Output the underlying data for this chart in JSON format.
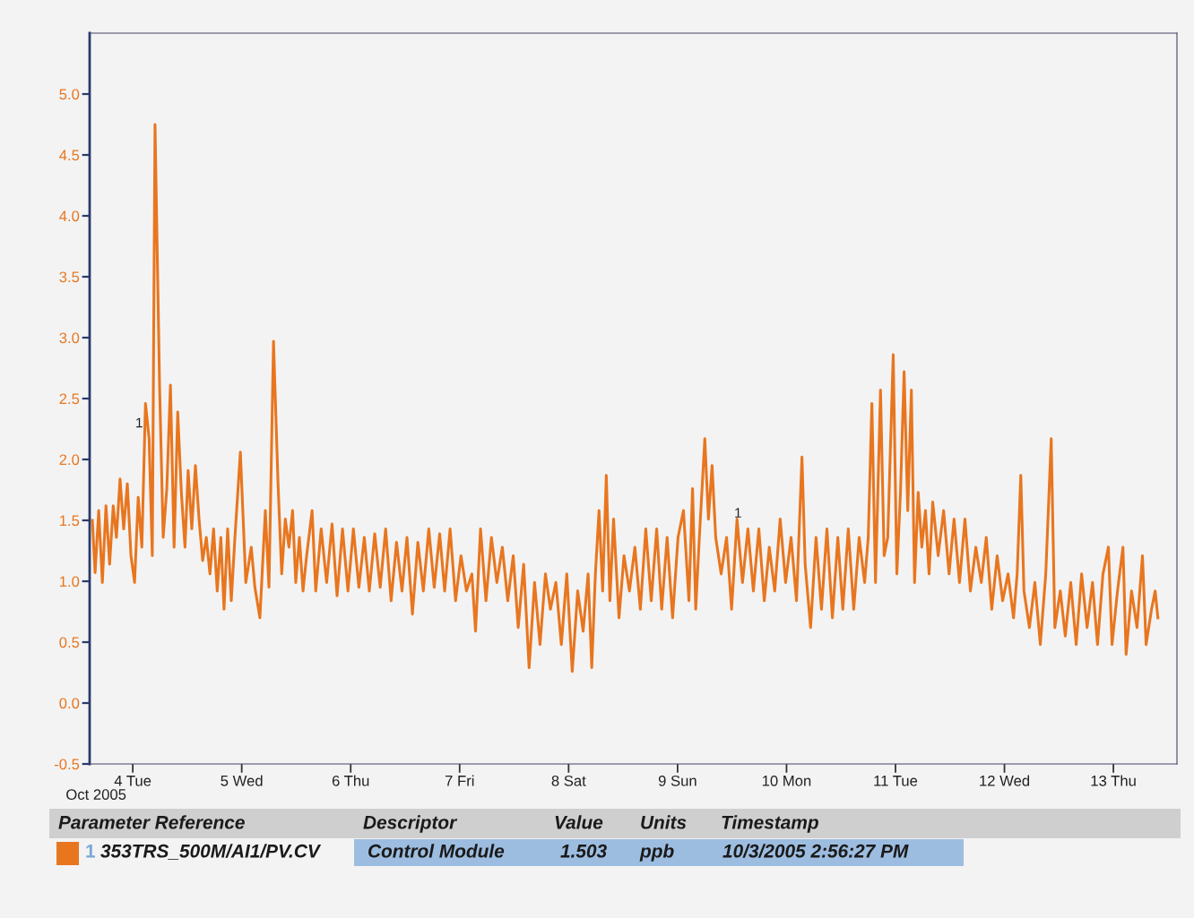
{
  "chart_data": {
    "type": "line",
    "xlabel": "Oct 2005",
    "x": [
      "2005-10-03T15:06",
      "2005-10-03T15:42",
      "2005-10-03T16:30",
      "2005-10-03T17:18",
      "2005-10-03T18:06",
      "2005-10-03T18:54",
      "2005-10-03T19:42",
      "2005-10-03T20:24",
      "2005-10-03T21:12",
      "2005-10-03T22:00",
      "2005-10-03T22:48",
      "2005-10-03T23:36",
      "2005-10-04T00:24",
      "2005-10-04T01:12",
      "2005-10-04T02:00",
      "2005-10-04T02:48",
      "2005-10-04T03:36",
      "2005-10-04T04:18",
      "2005-10-04T04:54",
      "2005-10-04T05:54",
      "2005-10-04T06:42",
      "2005-10-04T07:30",
      "2005-10-04T08:18",
      "2005-10-04T09:06",
      "2005-10-04T09:54",
      "2005-10-04T10:42",
      "2005-10-04T11:30",
      "2005-10-04T12:12",
      "2005-10-04T13:00",
      "2005-10-04T13:48",
      "2005-10-04T14:36",
      "2005-10-04T15:24",
      "2005-10-04T16:12",
      "2005-10-04T17:00",
      "2005-10-04T17:48",
      "2005-10-04T18:36",
      "2005-10-04T19:24",
      "2005-10-04T20:06",
      "2005-10-04T20:54",
      "2005-10-04T21:42",
      "2005-10-04T22:30",
      "2005-10-04T23:42",
      "2005-10-05T00:54",
      "2005-10-05T02:06",
      "2005-10-05T02:54",
      "2005-10-05T04:00",
      "2005-10-05T05:12",
      "2005-10-05T06:00",
      "2005-10-05T07:00",
      "2005-10-05T08:00",
      "2005-10-05T08:48",
      "2005-10-05T09:36",
      "2005-10-05T10:24",
      "2005-10-05T11:12",
      "2005-10-05T11:54",
      "2005-10-05T12:42",
      "2005-10-05T13:30",
      "2005-10-05T14:18",
      "2005-10-05T15:30",
      "2005-10-05T16:18",
      "2005-10-05T17:30",
      "2005-10-05T18:42",
      "2005-10-05T19:54",
      "2005-10-05T21:00",
      "2005-10-05T22:12",
      "2005-10-05T23:24",
      "2005-10-06T00:36",
      "2005-10-06T01:48",
      "2005-10-06T03:00",
      "2005-10-06T04:06",
      "2005-10-06T05:18",
      "2005-10-06T06:30",
      "2005-10-06T07:42",
      "2005-10-06T08:54",
      "2005-10-06T10:06",
      "2005-10-06T11:18",
      "2005-10-06T12:24",
      "2005-10-06T13:36",
      "2005-10-06T14:48",
      "2005-10-06T16:00",
      "2005-10-06T17:12",
      "2005-10-06T18:24",
      "2005-10-06T19:36",
      "2005-10-06T20:42",
      "2005-10-06T21:54",
      "2005-10-06T23:06",
      "2005-10-07T00:18",
      "2005-10-07T01:30",
      "2005-10-07T02:42",
      "2005-10-07T03:30",
      "2005-10-07T04:36",
      "2005-10-07T05:48",
      "2005-10-07T07:00",
      "2005-10-07T08:12",
      "2005-10-07T09:24",
      "2005-10-07T10:36",
      "2005-10-07T11:48",
      "2005-10-07T12:54",
      "2005-10-07T14:06",
      "2005-10-07T15:18",
      "2005-10-07T16:30",
      "2005-10-07T17:42",
      "2005-10-07T18:54",
      "2005-10-07T20:00",
      "2005-10-07T21:12",
      "2005-10-07T22:24",
      "2005-10-07T23:36",
      "2005-10-08T00:48",
      "2005-10-08T02:00",
      "2005-10-08T03:12",
      "2005-10-08T04:18",
      "2005-10-08T05:06",
      "2005-10-08T05:54",
      "2005-10-08T06:42",
      "2005-10-08T07:30",
      "2005-10-08T08:18",
      "2005-10-08T09:06",
      "2005-10-08T09:54",
      "2005-10-08T11:06",
      "2005-10-08T12:12",
      "2005-10-08T13:24",
      "2005-10-08T14:36",
      "2005-10-08T15:48",
      "2005-10-08T17:00",
      "2005-10-08T18:12",
      "2005-10-08T19:24",
      "2005-10-08T20:30",
      "2005-10-08T21:42",
      "2005-10-08T22:54",
      "2005-10-09T00:06",
      "2005-10-09T01:18",
      "2005-10-09T02:30",
      "2005-10-09T03:18",
      "2005-10-09T04:00",
      "2005-10-09T04:48",
      "2005-10-09T06:00",
      "2005-10-09T06:48",
      "2005-10-09T07:36",
      "2005-10-09T08:24",
      "2005-10-09T09:36",
      "2005-10-09T10:48",
      "2005-10-09T11:54",
      "2005-10-09T13:06",
      "2005-10-09T14:18",
      "2005-10-09T15:30",
      "2005-10-09T16:42",
      "2005-10-09T17:54",
      "2005-10-09T19:06",
      "2005-10-09T20:12",
      "2005-10-09T21:24",
      "2005-10-09T22:36",
      "2005-10-09T23:48",
      "2005-10-10T01:00",
      "2005-10-10T02:12",
      "2005-10-10T03:24",
      "2005-10-10T04:06",
      "2005-10-10T05:18",
      "2005-10-10T06:30",
      "2005-10-10T07:42",
      "2005-10-10T08:54",
      "2005-10-10T10:06",
      "2005-10-10T11:18",
      "2005-10-10T12:24",
      "2005-10-10T13:36",
      "2005-10-10T14:48",
      "2005-10-10T16:00",
      "2005-10-10T17:12",
      "2005-10-10T18:00",
      "2005-10-10T18:48",
      "2005-10-10T19:36",
      "2005-10-10T20:42",
      "2005-10-10T21:30",
      "2005-10-10T22:18",
      "2005-10-10T23:30",
      "2005-10-11T00:18",
      "2005-10-11T01:06",
      "2005-10-11T01:54",
      "2005-10-11T02:42",
      "2005-10-11T03:30",
      "2005-10-11T04:12",
      "2005-10-11T05:00",
      "2005-10-11T05:48",
      "2005-10-11T06:36",
      "2005-10-11T07:24",
      "2005-10-11T08:12",
      "2005-10-11T09:24",
      "2005-10-11T10:36",
      "2005-10-11T11:48",
      "2005-10-11T12:54",
      "2005-10-11T14:06",
      "2005-10-11T15:18",
      "2005-10-11T16:30",
      "2005-10-11T17:42",
      "2005-10-11T18:54",
      "2005-10-11T20:00",
      "2005-10-11T21:12",
      "2005-10-11T22:24",
      "2005-10-11T23:36",
      "2005-10-12T00:48",
      "2005-10-12T02:00",
      "2005-10-12T02:48",
      "2005-10-12T03:36",
      "2005-10-12T04:18",
      "2005-10-12T05:30",
      "2005-10-12T06:42",
      "2005-10-12T07:54",
      "2005-10-12T09:06",
      "2005-10-12T10:18",
      "2005-10-12T11:06",
      "2005-10-12T12:18",
      "2005-10-12T13:24",
      "2005-10-12T14:36",
      "2005-10-12T15:48",
      "2005-10-12T17:00",
      "2005-10-12T18:12",
      "2005-10-12T19:24",
      "2005-10-12T20:30",
      "2005-10-12T21:42",
      "2005-10-12T22:54",
      "2005-10-12T23:42",
      "2005-10-13T00:54",
      "2005-10-13T02:06",
      "2005-10-13T02:48",
      "2005-10-13T04:00",
      "2005-10-13T05:12",
      "2005-10-13T06:24",
      "2005-10-13T07:12",
      "2005-10-13T08:24",
      "2005-10-13T09:12",
      "2005-10-13T09:48"
    ],
    "series": [
      {
        "name": "353TRS_500M/AI1/PV.CV",
        "color": "#e8761f",
        "values": [
          1.5,
          1.07,
          1.58,
          0.99,
          1.62,
          1.14,
          1.62,
          1.36,
          1.84,
          1.43,
          1.8,
          1.21,
          0.99,
          1.69,
          1.28,
          2.46,
          2.17,
          1.21,
          4.75,
          2.61,
          1.36,
          1.76,
          2.61,
          1.28,
          2.39,
          1.73,
          1.28,
          1.91,
          1.43,
          1.95,
          1.51,
          1.17,
          1.36,
          1.06,
          1.43,
          0.92,
          1.36,
          0.77,
          1.43,
          0.84,
          1.36,
          2.06,
          0.99,
          1.28,
          0.95,
          0.7,
          1.58,
          0.95,
          2.97,
          1.8,
          1.06,
          1.51,
          1.28,
          1.58,
          0.99,
          1.36,
          0.92,
          1.21,
          1.58,
          0.92,
          1.43,
          0.99,
          1.47,
          0.88,
          1.43,
          0.92,
          1.43,
          0.95,
          1.36,
          0.92,
          1.39,
          0.95,
          1.43,
          0.84,
          1.32,
          0.92,
          1.36,
          0.73,
          1.32,
          0.92,
          1.43,
          0.95,
          1.39,
          0.92,
          1.43,
          0.84,
          1.21,
          0.92,
          1.06,
          0.59,
          1.43,
          0.84,
          1.36,
          0.99,
          1.28,
          0.84,
          1.21,
          0.62,
          1.14,
          0.29,
          0.99,
          0.48,
          1.06,
          0.77,
          0.99,
          0.48,
          1.06,
          0.26,
          0.92,
          0.59,
          1.06,
          0.29,
          1.06,
          1.58,
          0.92,
          1.87,
          0.84,
          1.51,
          0.7,
          1.21,
          0.92,
          1.28,
          0.77,
          1.43,
          0.84,
          1.43,
          0.77,
          1.36,
          0.7,
          1.36,
          1.58,
          0.84,
          1.76,
          0.77,
          1.36,
          2.17,
          1.51,
          1.95,
          1.36,
          1.06,
          1.36,
          0.77,
          1.51,
          0.99,
          1.43,
          0.92,
          1.43,
          0.84,
          1.28,
          0.92,
          1.51,
          0.99,
          1.36,
          0.84,
          2.02,
          1.14,
          0.62,
          1.36,
          0.77,
          1.43,
          0.7,
          1.36,
          0.77,
          1.43,
          0.77,
          1.36,
          0.99,
          1.36,
          2.46,
          0.99,
          2.57,
          1.21,
          1.36,
          2.86,
          1.06,
          1.73,
          2.72,
          1.58,
          2.57,
          0.99,
          1.73,
          1.28,
          1.58,
          1.06,
          1.65,
          1.21,
          1.58,
          1.06,
          1.51,
          0.99,
          1.51,
          0.92,
          1.28,
          0.99,
          1.36,
          0.77,
          1.21,
          0.84,
          1.06,
          0.7,
          1.06,
          1.87,
          0.92,
          0.62,
          0.99,
          0.48,
          1.06,
          2.17,
          0.62,
          0.92,
          0.55,
          0.99,
          0.48,
          1.06,
          0.62,
          0.99,
          0.48,
          1.06,
          1.28,
          0.48,
          0.92,
          1.28,
          0.4,
          0.92,
          0.62,
          1.21,
          0.48,
          0.77,
          0.92,
          0.7
        ]
      }
    ],
    "xlim": [
      "2005-10-03T14:30",
      "2005-10-13T14:00"
    ],
    "xticks": [
      {
        "value": "2005-10-04",
        "label": "4 Tue"
      },
      {
        "value": "2005-10-05",
        "label": "5 Wed"
      },
      {
        "value": "2005-10-06",
        "label": "6 Thu"
      },
      {
        "value": "2005-10-07",
        "label": "7 Fri"
      },
      {
        "value": "2005-10-08",
        "label": "8 Sat"
      },
      {
        "value": "2005-10-09",
        "label": "9 Sun"
      },
      {
        "value": "2005-10-10",
        "label": "10 Mon"
      },
      {
        "value": "2005-10-11",
        "label": "11 Tue"
      },
      {
        "value": "2005-10-12",
        "label": "12 Wed"
      },
      {
        "value": "2005-10-13",
        "label": "13 Thu"
      }
    ],
    "ylim": [
      -0.5,
      5.5
    ],
    "yticks": [
      -0.5,
      {
        "value": 0,
        "label": "0.0"
      },
      0.5,
      {
        "value": 1,
        "label": "1.0"
      },
      1.5,
      {
        "value": 2,
        "label": "2.0"
      },
      2.5,
      {
        "value": 3,
        "label": "3.0"
      },
      3.5,
      {
        "value": 4,
        "label": "4.0"
      },
      4.5,
      {
        "value": 5,
        "label": "5.0"
      }
    ],
    "grid": false,
    "legend": "bottom",
    "marker": "none",
    "line_style": "solid",
    "annotations": [
      "Parameter Reference",
      "Descriptor",
      "Value",
      "Units",
      "Timestamp",
      "1",
      "Control Module",
      "1.503",
      "ppb",
      "10/3/2005 2:56:27 PM",
      {
        "text": "1",
        "x": "2005-10-04T03:36",
        "y": 2.17
      },
      {
        "text": "1",
        "x": "2005-10-09T15:30",
        "y": 1.43
      }
    ]
  }
}
